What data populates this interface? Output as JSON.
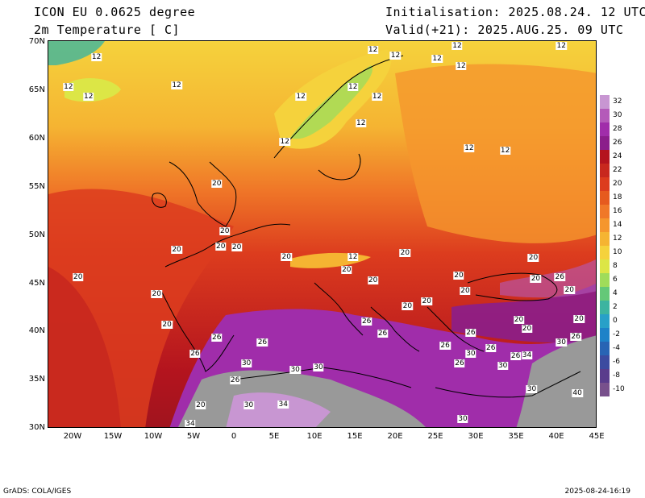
{
  "header": {
    "model": "ICON EU 0.0625 degree",
    "variable": "2m Temperature [ C]",
    "init": "Initialisation: 2025.08.24. 12 UTC",
    "valid": "Valid(+21): 2025.AUG.25. 09 UTC"
  },
  "axes": {
    "lat_labels": [
      "70N",
      "65N",
      "60N",
      "55N",
      "50N",
      "45N",
      "40N",
      "35N",
      "30N"
    ],
    "lon_labels": [
      "20W",
      "15W",
      "10W",
      "5W",
      "0",
      "5E",
      "10E",
      "15E",
      "20E",
      "25E",
      "30E",
      "35E",
      "40E",
      "45E"
    ]
  },
  "colorbar": {
    "labels": [
      "32",
      "30",
      "28",
      "26",
      "24",
      "22",
      "20",
      "18",
      "16",
      "14",
      "12",
      "10",
      "8",
      "6",
      "4",
      "2",
      "0",
      "-2",
      "-4",
      "-6",
      "-8",
      "-10"
    ],
    "colors": [
      "#c896d2",
      "#b45ab9",
      "#a02daa",
      "#8b1e8b",
      "#b4141e",
      "#c8281e",
      "#dc3c1e",
      "#e65a1e",
      "#f07828",
      "#f5962d",
      "#f5b432",
      "#f5d23c",
      "#dce646",
      "#a0dc5a",
      "#64c878",
      "#3cb4a0",
      "#28a0c8",
      "#1e82c8",
      "#2864b4",
      "#3c4ba0",
      "#5a3c8c",
      "#78508c"
    ]
  },
  "contour_labels": [
    {
      "text": "12",
      "lon": -17.5,
      "lat": 68.3
    },
    {
      "text": "12",
      "lon": -21.0,
      "lat": 65.3
    },
    {
      "text": "12",
      "lon": -18.5,
      "lat": 64.3
    },
    {
      "text": "12",
      "lon": -7.5,
      "lat": 65.4
    },
    {
      "text": "12",
      "lon": 8.0,
      "lat": 64.3
    },
    {
      "text": "12",
      "lon": 14.5,
      "lat": 65.3
    },
    {
      "text": "12",
      "lon": 17.0,
      "lat": 69.1
    },
    {
      "text": "12",
      "lon": 19.8,
      "lat": 68.5
    },
    {
      "text": "12",
      "lon": 25.0,
      "lat": 68.2
    },
    {
      "text": "12",
      "lon": 27.5,
      "lat": 70.5
    },
    {
      "text": "12",
      "lon": 28.0,
      "lat": 67.4
    },
    {
      "text": "12",
      "lon": 40.5,
      "lat": 70.4
    },
    {
      "text": "12",
      "lon": 17.5,
      "lat": 64.3
    },
    {
      "text": "12",
      "lon": 15.5,
      "lat": 61.5
    },
    {
      "text": "12",
      "lon": 6.0,
      "lat": 59.6
    },
    {
      "text": "12",
      "lon": 29.0,
      "lat": 58.9
    },
    {
      "text": "12",
      "lon": 33.5,
      "lat": 58.7
    },
    {
      "text": "20",
      "lon": -2.5,
      "lat": 55.3
    },
    {
      "text": "20",
      "lon": -1.5,
      "lat": 50.4
    },
    {
      "text": "20",
      "lon": -2.0,
      "lat": 48.8
    },
    {
      "text": "20",
      "lon": 0.0,
      "lat": 48.7
    },
    {
      "text": "20",
      "lon": -7.5,
      "lat": 48.5
    },
    {
      "text": "20",
      "lon": -19.8,
      "lat": 45.6
    },
    {
      "text": "20",
      "lon": -10.0,
      "lat": 43.9
    },
    {
      "text": "20",
      "lon": -8.7,
      "lat": 40.7
    },
    {
      "text": "20",
      "lon": 6.2,
      "lat": 47.7
    },
    {
      "text": "12",
      "lon": 14.5,
      "lat": 47.7
    },
    {
      "text": "20",
      "lon": 13.7,
      "lat": 46.4
    },
    {
      "text": "20",
      "lon": 17.0,
      "lat": 45.3
    },
    {
      "text": "20",
      "lon": 21.0,
      "lat": 48.1
    },
    {
      "text": "20",
      "lon": 27.7,
      "lat": 45.8
    },
    {
      "text": "20",
      "lon": 28.5,
      "lat": 44.2
    },
    {
      "text": "20",
      "lon": 21.3,
      "lat": 42.6
    },
    {
      "text": "20",
      "lon": 23.7,
      "lat": 43.1
    },
    {
      "text": "20",
      "lon": 37.0,
      "lat": 47.6
    },
    {
      "text": "20",
      "lon": 37.3,
      "lat": 45.5
    },
    {
      "text": "26",
      "lon": 40.3,
      "lat": 45.6
    },
    {
      "text": "20",
      "lon": 41.5,
      "lat": 44.3
    },
    {
      "text": "20",
      "lon": 35.2,
      "lat": 41.2
    },
    {
      "text": "20",
      "lon": 36.2,
      "lat": 40.3
    },
    {
      "text": "20",
      "lon": 42.7,
      "lat": 41.3
    },
    {
      "text": "26",
      "lon": 42.3,
      "lat": 39.5
    },
    {
      "text": "30",
      "lon": 40.5,
      "lat": 38.9
    },
    {
      "text": "26",
      "lon": -5.2,
      "lat": 37.7
    },
    {
      "text": "26",
      "lon": -2.5,
      "lat": 39.4
    },
    {
      "text": "26",
      "lon": 3.2,
      "lat": 38.9
    },
    {
      "text": "26",
      "lon": 16.2,
      "lat": 41.1
    },
    {
      "text": "26",
      "lon": 18.2,
      "lat": 39.8
    },
    {
      "text": "26",
      "lon": 26.0,
      "lat": 38.6
    },
    {
      "text": "26",
      "lon": 29.2,
      "lat": 39.9
    },
    {
      "text": "30",
      "lon": 29.2,
      "lat": 37.7
    },
    {
      "text": "26",
      "lon": 31.7,
      "lat": 38.3
    },
    {
      "text": "26",
      "lon": 27.8,
      "lat": 36.7
    },
    {
      "text": "30",
      "lon": 33.2,
      "lat": 36.5
    },
    {
      "text": "26",
      "lon": 34.8,
      "lat": 37.5
    },
    {
      "text": "34",
      "lon": 36.2,
      "lat": 37.6
    },
    {
      "text": "30",
      "lon": 1.2,
      "lat": 36.7
    },
    {
      "text": "30",
      "lon": 7.3,
      "lat": 36.1
    },
    {
      "text": "30",
      "lon": 10.2,
      "lat": 36.3
    },
    {
      "text": "26",
      "lon": -0.2,
      "lat": 35.0
    },
    {
      "text": "30",
      "lon": 1.5,
      "lat": 32.4
    },
    {
      "text": "34",
      "lon": 5.8,
      "lat": 32.5
    },
    {
      "text": "20",
      "lon": -4.5,
      "lat": 32.4
    },
    {
      "text": "34",
      "lon": -5.8,
      "lat": 30.1
    },
    {
      "text": "30",
      "lon": 36.8,
      "lat": 34.1
    },
    {
      "text": "40",
      "lon": 42.5,
      "lat": 33.7
    },
    {
      "text": "30",
      "lon": 28.2,
      "lat": 31.0
    }
  ],
  "footer": {
    "left": "GrADS: COLA/IGES",
    "right": "2025-08-24-16:19"
  }
}
